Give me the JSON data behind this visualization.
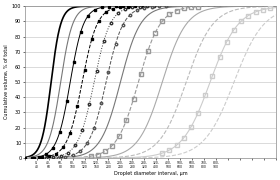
{
  "title": "",
  "xlabel": "Droplet diameter interval, μm",
  "ylabel": "Cumulative volume, % of total",
  "xlim": [
    0,
    21
  ],
  "ylim": [
    0,
    100
  ],
  "background_color": "#ffffff",
  "grid_color": "#cccccc",
  "curves": [
    {
      "x50": 2.2,
      "k": 2.5,
      "color": "#000000",
      "lw": 1.2,
      "ls": "-",
      "marker": "None",
      "ms": 2,
      "mfc": "#000000"
    },
    {
      "x50": 3.0,
      "k": 2.0,
      "color": "#777777",
      "lw": 0.8,
      "ls": "-",
      "marker": "None",
      "ms": 2,
      "mfc": "#777777"
    },
    {
      "x50": 3.8,
      "k": 1.8,
      "color": "#000000",
      "lw": 0.7,
      "ls": "-",
      "marker": "s",
      "ms": 1.8,
      "mfc": "#000000"
    },
    {
      "x50": 4.8,
      "k": 1.6,
      "color": "#000000",
      "lw": 0.7,
      "ls": "--",
      "marker": "s",
      "ms": 1.8,
      "mfc": "#000000"
    },
    {
      "x50": 5.8,
      "k": 1.5,
      "color": "#333333",
      "lw": 0.7,
      "ls": ":",
      "marker": "o",
      "ms": 1.8,
      "mfc": "none"
    },
    {
      "x50": 6.8,
      "k": 1.4,
      "color": "#555555",
      "lw": 0.7,
      "ls": "--",
      "marker": "o",
      "ms": 1.8,
      "mfc": "none"
    },
    {
      "x50": 8.0,
      "k": 1.2,
      "color": "#777777",
      "lw": 0.8,
      "ls": "-",
      "marker": "None",
      "ms": 2,
      "mfc": "#777777"
    },
    {
      "x50": 9.5,
      "k": 1.1,
      "color": "#999999",
      "lw": 0.8,
      "ls": "--",
      "marker": "s",
      "ms": 2.2,
      "mfc": "none"
    },
    {
      "x50": 11.5,
      "k": 1.0,
      "color": "#aaaaaa",
      "lw": 0.8,
      "ls": "-",
      "marker": "None",
      "ms": 2,
      "mfc": "#aaaaaa"
    },
    {
      "x50": 13.5,
      "k": 0.9,
      "color": "#bbbbbb",
      "lw": 0.8,
      "ls": "--",
      "marker": "None",
      "ms": 2,
      "mfc": "#bbbbbb"
    },
    {
      "x50": 15.5,
      "k": 0.85,
      "color": "#cccccc",
      "lw": 0.8,
      "ls": "-",
      "marker": "s",
      "ms": 2.2,
      "mfc": "none"
    },
    {
      "x50": 17.5,
      "k": 0.8,
      "color": "#cccccc",
      "lw": 0.8,
      "ls": "--",
      "marker": "None",
      "ms": 2,
      "mfc": "#cccccc"
    }
  ],
  "xtick_labels": [
    "0-\n40",
    "40-\n60",
    "60-\n80",
    "80-\n100",
    "100-\n120",
    "120-\n160",
    "160-\n200",
    "200-\n240",
    "240-\n280",
    "280-\n320",
    "320-\n400",
    "400-\n500",
    "500-\n600",
    "600-\n700",
    "700-\n800",
    "800-\n900"
  ],
  "num_xticks": 21,
  "yticks": [
    0,
    10,
    20,
    30,
    40,
    50,
    60,
    70,
    80,
    90,
    100
  ]
}
